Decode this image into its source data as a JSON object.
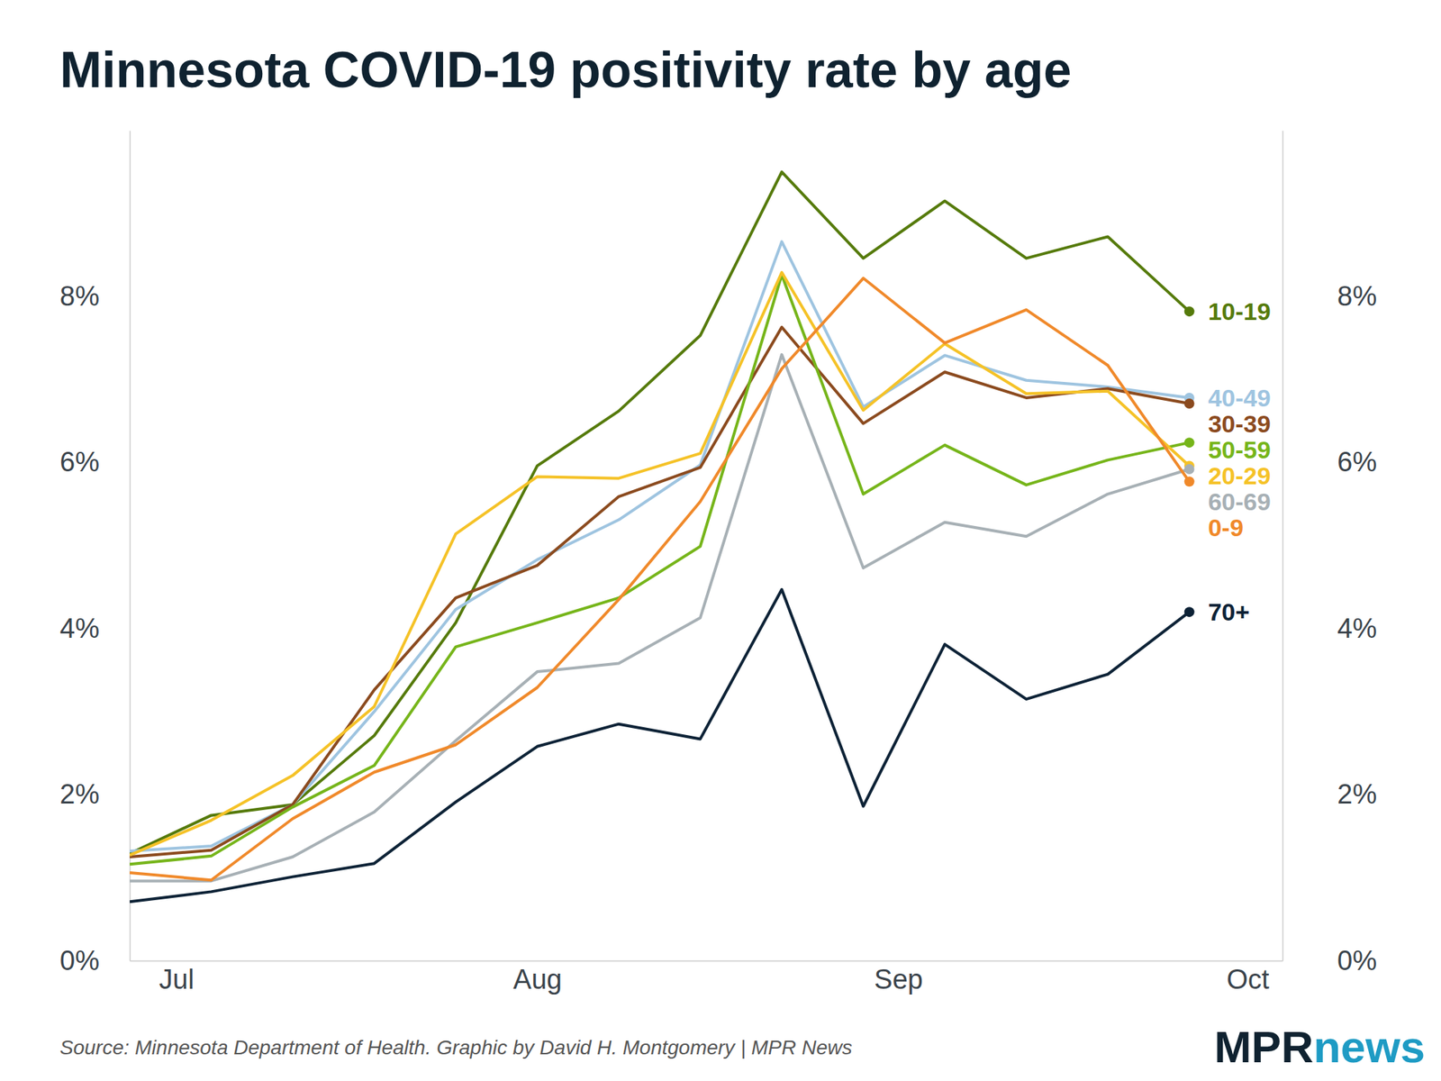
{
  "chart_data": {
    "type": "line",
    "title": "Minnesota COVID-19 positivity rate by age",
    "source": "Source: Minnesota Department of Health. Graphic by David H. Montgomery | MPR News",
    "logo": [
      "MPR",
      "news"
    ],
    "x": [
      -4,
      3,
      10,
      17,
      24,
      31,
      38,
      45,
      52,
      59,
      66,
      73,
      80,
      87
    ],
    "xlim": [
      -4,
      95
    ],
    "xticks": [
      {
        "value": 0,
        "label": "Jul"
      },
      {
        "value": 31,
        "label": "Aug"
      },
      {
        "value": 62,
        "label": "Sep"
      },
      {
        "value": 92,
        "label": "Oct"
      }
    ],
    "ylim": [
      0,
      10
    ],
    "yticks": [
      {
        "value": 0,
        "label": "0%"
      },
      {
        "value": 2,
        "label": "2%"
      },
      {
        "value": 4,
        "label": "4%"
      },
      {
        "value": 6,
        "label": "6%"
      },
      {
        "value": 8,
        "label": "8%"
      }
    ],
    "y2lim": [
      0,
      10
    ],
    "y2ticks": [
      {
        "value": 0,
        "label": "0%"
      },
      {
        "value": 2,
        "label": "2%"
      },
      {
        "value": 4,
        "label": "4%"
      },
      {
        "value": 6,
        "label": "6%"
      },
      {
        "value": 8,
        "label": "8%"
      }
    ],
    "grid": false,
    "marker": "last",
    "line_style": "solid",
    "series": [
      {
        "name": "10-19",
        "color": "#557a0b",
        "values": [
          1.29,
          1.75,
          1.88,
          2.71,
          4.07,
          5.96,
          6.62,
          7.53,
          9.5,
          8.46,
          9.15,
          8.46,
          8.72,
          7.82
        ]
      },
      {
        "name": "40-49",
        "color": "#9ec4e0",
        "values": [
          1.32,
          1.38,
          1.88,
          3.0,
          4.23,
          4.83,
          5.31,
          5.97,
          8.66,
          6.67,
          7.29,
          6.99,
          6.91,
          6.78
        ]
      },
      {
        "name": "30-39",
        "color": "#8b4a1e",
        "values": [
          1.25,
          1.33,
          1.88,
          3.26,
          4.37,
          4.76,
          5.59,
          5.94,
          7.63,
          6.47,
          7.09,
          6.78,
          6.89,
          6.71
        ]
      },
      {
        "name": "50-59",
        "color": "#76b51a",
        "values": [
          1.16,
          1.26,
          1.85,
          2.35,
          3.78,
          4.07,
          4.37,
          4.99,
          8.26,
          5.62,
          6.21,
          5.73,
          6.03,
          6.24
        ]
      },
      {
        "name": "20-29",
        "color": "#f5c227",
        "values": [
          1.27,
          1.69,
          2.23,
          3.06,
          5.14,
          5.83,
          5.81,
          6.11,
          8.29,
          6.63,
          7.43,
          6.83,
          6.86,
          5.96
        ]
      },
      {
        "name": "60-69",
        "color": "#a7b0b5",
        "values": [
          0.96,
          0.96,
          1.25,
          1.79,
          2.65,
          3.48,
          3.58,
          4.13,
          7.3,
          4.73,
          5.28,
          5.11,
          5.62,
          5.92
        ]
      },
      {
        "name": "0-9",
        "color": "#f0892a",
        "values": [
          1.06,
          0.97,
          1.71,
          2.27,
          2.6,
          3.29,
          4.35,
          5.53,
          7.13,
          8.22,
          7.44,
          7.84,
          7.17,
          5.77
        ]
      },
      {
        "name": "70+",
        "color": "#0d2236",
        "values": [
          0.71,
          0.83,
          1.01,
          1.17,
          1.91,
          2.58,
          2.85,
          2.67,
          4.47,
          1.86,
          3.81,
          3.15,
          3.45,
          4.2
        ]
      }
    ]
  }
}
